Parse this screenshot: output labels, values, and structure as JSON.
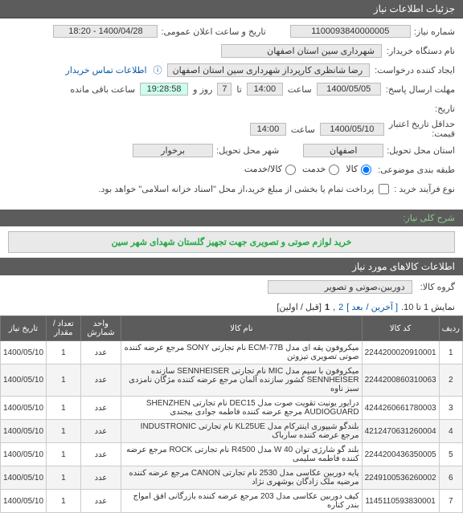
{
  "header_title": "جزئیات اطلاعات نیاز",
  "form": {
    "request_number_label": "شماره نیاز:",
    "request_number": "1100093840000005",
    "announce_label": "تاریخ و ساعت اعلان عمومی:",
    "announce_value": "1400/04/28 - 18:20",
    "buyer_label": "نام دستگاه خریدار:",
    "buyer_value": "شهرداری سین استان اصفهان",
    "creator_label": "ایجاد کننده درخواست:",
    "creator_value": "رضا شانظری کارپرداز شهرداری سین استان اصفهان",
    "contact_link": "اطلاعات تماس خریدار",
    "deadline_label": "مهلت ارسال پاسخ:",
    "deadline_date": "1400/05/05",
    "time_label": "ساعت",
    "deadline_time": "14:00",
    "days_prefix": "تا",
    "days_value": "7",
    "days_suffix": "روز و",
    "remaining_time": "19:28:58",
    "remaining_label": "ساعت باقی مانده",
    "until_label": "تاریخ:",
    "valid_label": "حداقل تاریخ اعتبار",
    "valid_label2": "قیمت:",
    "valid_date": "1400/05/10",
    "valid_time": "14:00",
    "province_label": "استان محل تحویل:",
    "province_value": "اصفهان",
    "city_label": "شهر محل تحویل:",
    "city_value": "برخوار",
    "category_label": "طبقه بندی موضوعی:",
    "cat_opt1": "کالا",
    "cat_opt2": "خدمت",
    "cat_opt3": "کالا/خدمت",
    "process_label": "نوع فرآیند خرید :",
    "process_note": "پرداخت تمام یا بخشی از مبلغ خرید،از محل \"اسناد خزانه اسلامی\" خواهد بود.",
    "desc_section_label": "شرح کلی نیاز:",
    "desc_text": "خرید لوازم صوتی و تصویری جهت تجهیز گلستان شهدای شهر سین",
    "items_header": "اطلاعات کالاهای مورد نیاز",
    "group_label": "گروه کالا:",
    "group_value": "دوربین،صوتی و تصویر",
    "pager_text": "نمایش 1 تا 10.",
    "pager_last": "[ آخرین /",
    "pager_next": "بعد ]",
    "pager_p2": "2",
    "pager_p1": "1",
    "pager_sep": ",",
    "pager_first": "[قبل / اولین]"
  },
  "columns": [
    "ردیف",
    "کد کالا",
    "نام کالا",
    "واحد شمارش",
    "تعداد / مقدار",
    "تاریخ نیاز"
  ],
  "rows": [
    {
      "n": "1",
      "code": "2244200020910001",
      "name": "میکروفون یقه ای مدل ECM-77B نام تجارتی SONY مرجع عرضه کننده صوتی تصویری تیزوتن",
      "unit": "عدد",
      "qty": "1",
      "date": "1400/05/10"
    },
    {
      "n": "2",
      "code": "2244200860310063",
      "name": "میکروفون با سیم مدل MIC نام تجارتی SENNHEISER سازنده SENNHEISER کشور سازنده آلمان مرجع عرضه کننده مژگان نامزدی سبز ناوه",
      "unit": "عدد",
      "qty": "1",
      "date": "1400/05/10"
    },
    {
      "n": "3",
      "code": "4244260661780003",
      "name": "درایور یونیت تقویت صوت مدل DEC15 نام تجارتی SHENZHEN AUDIOGUARD مرجع عرضه کننده فاطمه جوادی بیجندی",
      "unit": "عدد",
      "qty": "1",
      "date": "1400/05/10"
    },
    {
      "n": "4",
      "code": "4212470631260004",
      "name": "بلندگو شیپوری اینترکام مدل KL25UE نام تجارتی INDUSTRONIC مرجع عرضه کننده سارباک",
      "unit": "عدد",
      "qty": "1",
      "date": "1400/05/10"
    },
    {
      "n": "5",
      "code": "2244200436350005",
      "name": "بلند گو شارژی توان W 40 مدل R4500 نام تجارتی ROCK مرجع عرضه کننده فاطمه سلیمی",
      "unit": "عدد",
      "qty": "1",
      "date": "1400/05/10"
    },
    {
      "n": "6",
      "code": "2249100536260002",
      "name": "پایه دوربین عکاسی مدل 2530 نام تجارتی CANON مرجع عرضه کننده مرضیه ملک زادگان بوشهری نژاد",
      "unit": "عدد",
      "qty": "1",
      "date": "1400/05/10"
    },
    {
      "n": "7",
      "code": "1145110593830001",
      "name": "کیف دوربین عکاسی مدل 203 مرجع عرضه کننده بازرگانی افق امواج بندر کناره",
      "unit": "عدد",
      "qty": "1",
      "date": "1400/05/10"
    }
  ]
}
